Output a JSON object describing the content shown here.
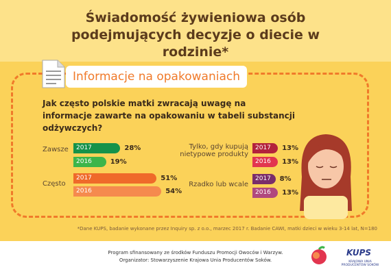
{
  "header": {
    "title": "Świadomość żywieniowa osób podejmujących decyzje o diecie w rodzinie*"
  },
  "section": {
    "label": "Informacje na opakowaniach"
  },
  "question": "Jak często polskie matki zwracają uwagę na informacje zawarte na opakowaniu w tabeli substancji odżywczych?",
  "chart_data": {
    "type": "bar",
    "categories": [
      "Zawsze",
      "Często",
      "Tylko, gdy kupują nietypowe produkty",
      "Rzadko lub wcale"
    ],
    "series": [
      {
        "name": "2017",
        "colors": [
          "#16924a",
          "#ef6a2a",
          "#b3223c",
          "#7a2d6a"
        ],
        "values": [
          28,
          51,
          13,
          8
        ],
        "value_labels": [
          "28%",
          "51%",
          "13%",
          "8%"
        ]
      },
      {
        "name": "2016",
        "colors": [
          "#3db54a",
          "#f58a4e",
          "#e2354f",
          "#b0487e"
        ],
        "values": [
          19,
          54,
          13,
          13
        ],
        "value_labels": [
          "19%",
          "54%",
          "13%",
          "13%"
        ]
      }
    ]
  },
  "footnote": "*Dane KUPS, badanie wykonane przez Inquiry sp. z o.o., marzec 2017 r. Badanie CAWI, matki dzieci w wieku 3-14 lat, N=180",
  "footer": {
    "lines": [
      "Program sfinansowany ze środków Funduszu Promocji Owoców i Warzyw.",
      "Organizator: Stowarzyszenie Krajowa Unia Producentów Soków."
    ]
  },
  "logo": {
    "name": "KUPS",
    "subtitle": "KRAJOWA UNIA PRODUCENTÓW SOKÓW"
  }
}
